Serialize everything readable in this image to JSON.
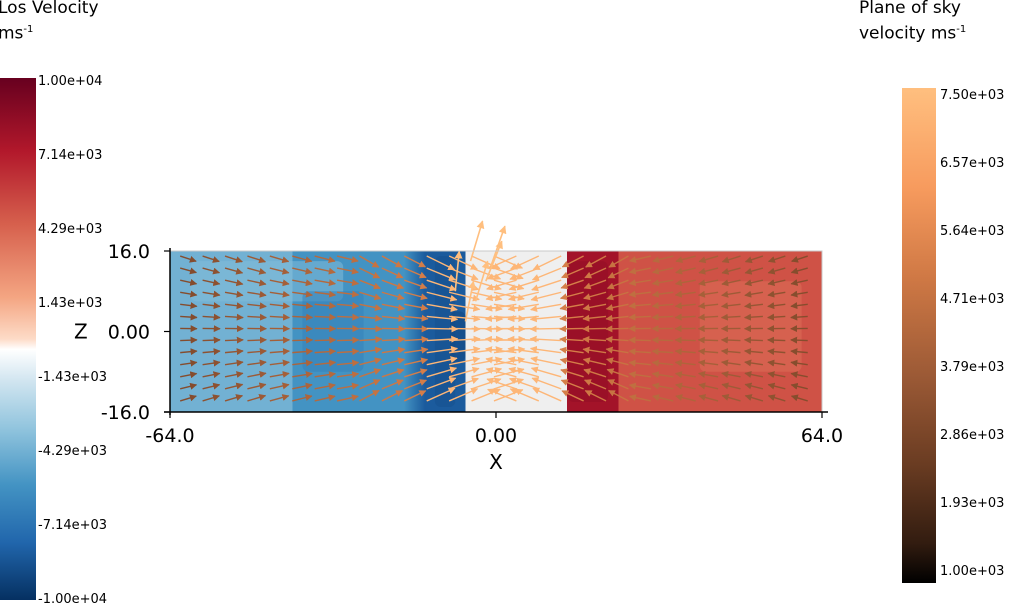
{
  "chart_data": {
    "type": "heatmap",
    "title": "",
    "xlabel": "X",
    "ylabel": "Z",
    "xlim": [
      -64.0,
      64.0
    ],
    "ylim": [
      -16.0,
      16.0
    ],
    "x_ticks": [
      "-64.0",
      "0.00",
      "64.0"
    ],
    "y_ticks": [
      "16.0",
      "0.00",
      "-16.0"
    ],
    "grid": false,
    "colorbars": [
      {
        "position": "left",
        "title": "Los Velocity",
        "unit_base": "ms",
        "unit_exp": "-1",
        "range": [
          -10000,
          10000
        ],
        "tick_labels": [
          "1.00e+04",
          "7.14e+03",
          "4.29e+03",
          "1.43e+03",
          "-1.43e+03",
          "-4.29e+03",
          "-7.14e+03",
          "-1.00e+04"
        ],
        "colors": [
          "#67001f",
          "#b2182b",
          "#d6604d",
          "#f4a582",
          "#ffffff",
          "#92c5de",
          "#4393c3",
          "#2166ac",
          "#053061"
        ]
      },
      {
        "position": "right",
        "title_line1": "Plane of sky",
        "title_line2": "velocity ms",
        "unit_exp": "-1",
        "range": [
          1000,
          7500
        ],
        "tick_labels": [
          "7.50e+03",
          "6.57e+03",
          "5.64e+03",
          "4.71e+03",
          "3.79e+03",
          "2.86e+03",
          "1.93e+03",
          "1.00e+03"
        ],
        "colors": [
          "#ffbf7f",
          "#f79b5e",
          "#d07945",
          "#9c5a36",
          "#6a3c22",
          "#000000"
        ]
      }
    ],
    "los_velocity_regions": [
      {
        "x_range": [
          -64,
          -40
        ],
        "value": -3500
      },
      {
        "x_range": [
          -40,
          -18
        ],
        "value": -5000
      },
      {
        "x_range": [
          -14,
          -6
        ],
        "value": -8000
      },
      {
        "x_range": [
          -6,
          14
        ],
        "value": 0
      },
      {
        "x_range": [
          14,
          24
        ],
        "value": 8000
      },
      {
        "x_range": [
          24,
          64
        ],
        "value": 5500
      }
    ]
  }
}
